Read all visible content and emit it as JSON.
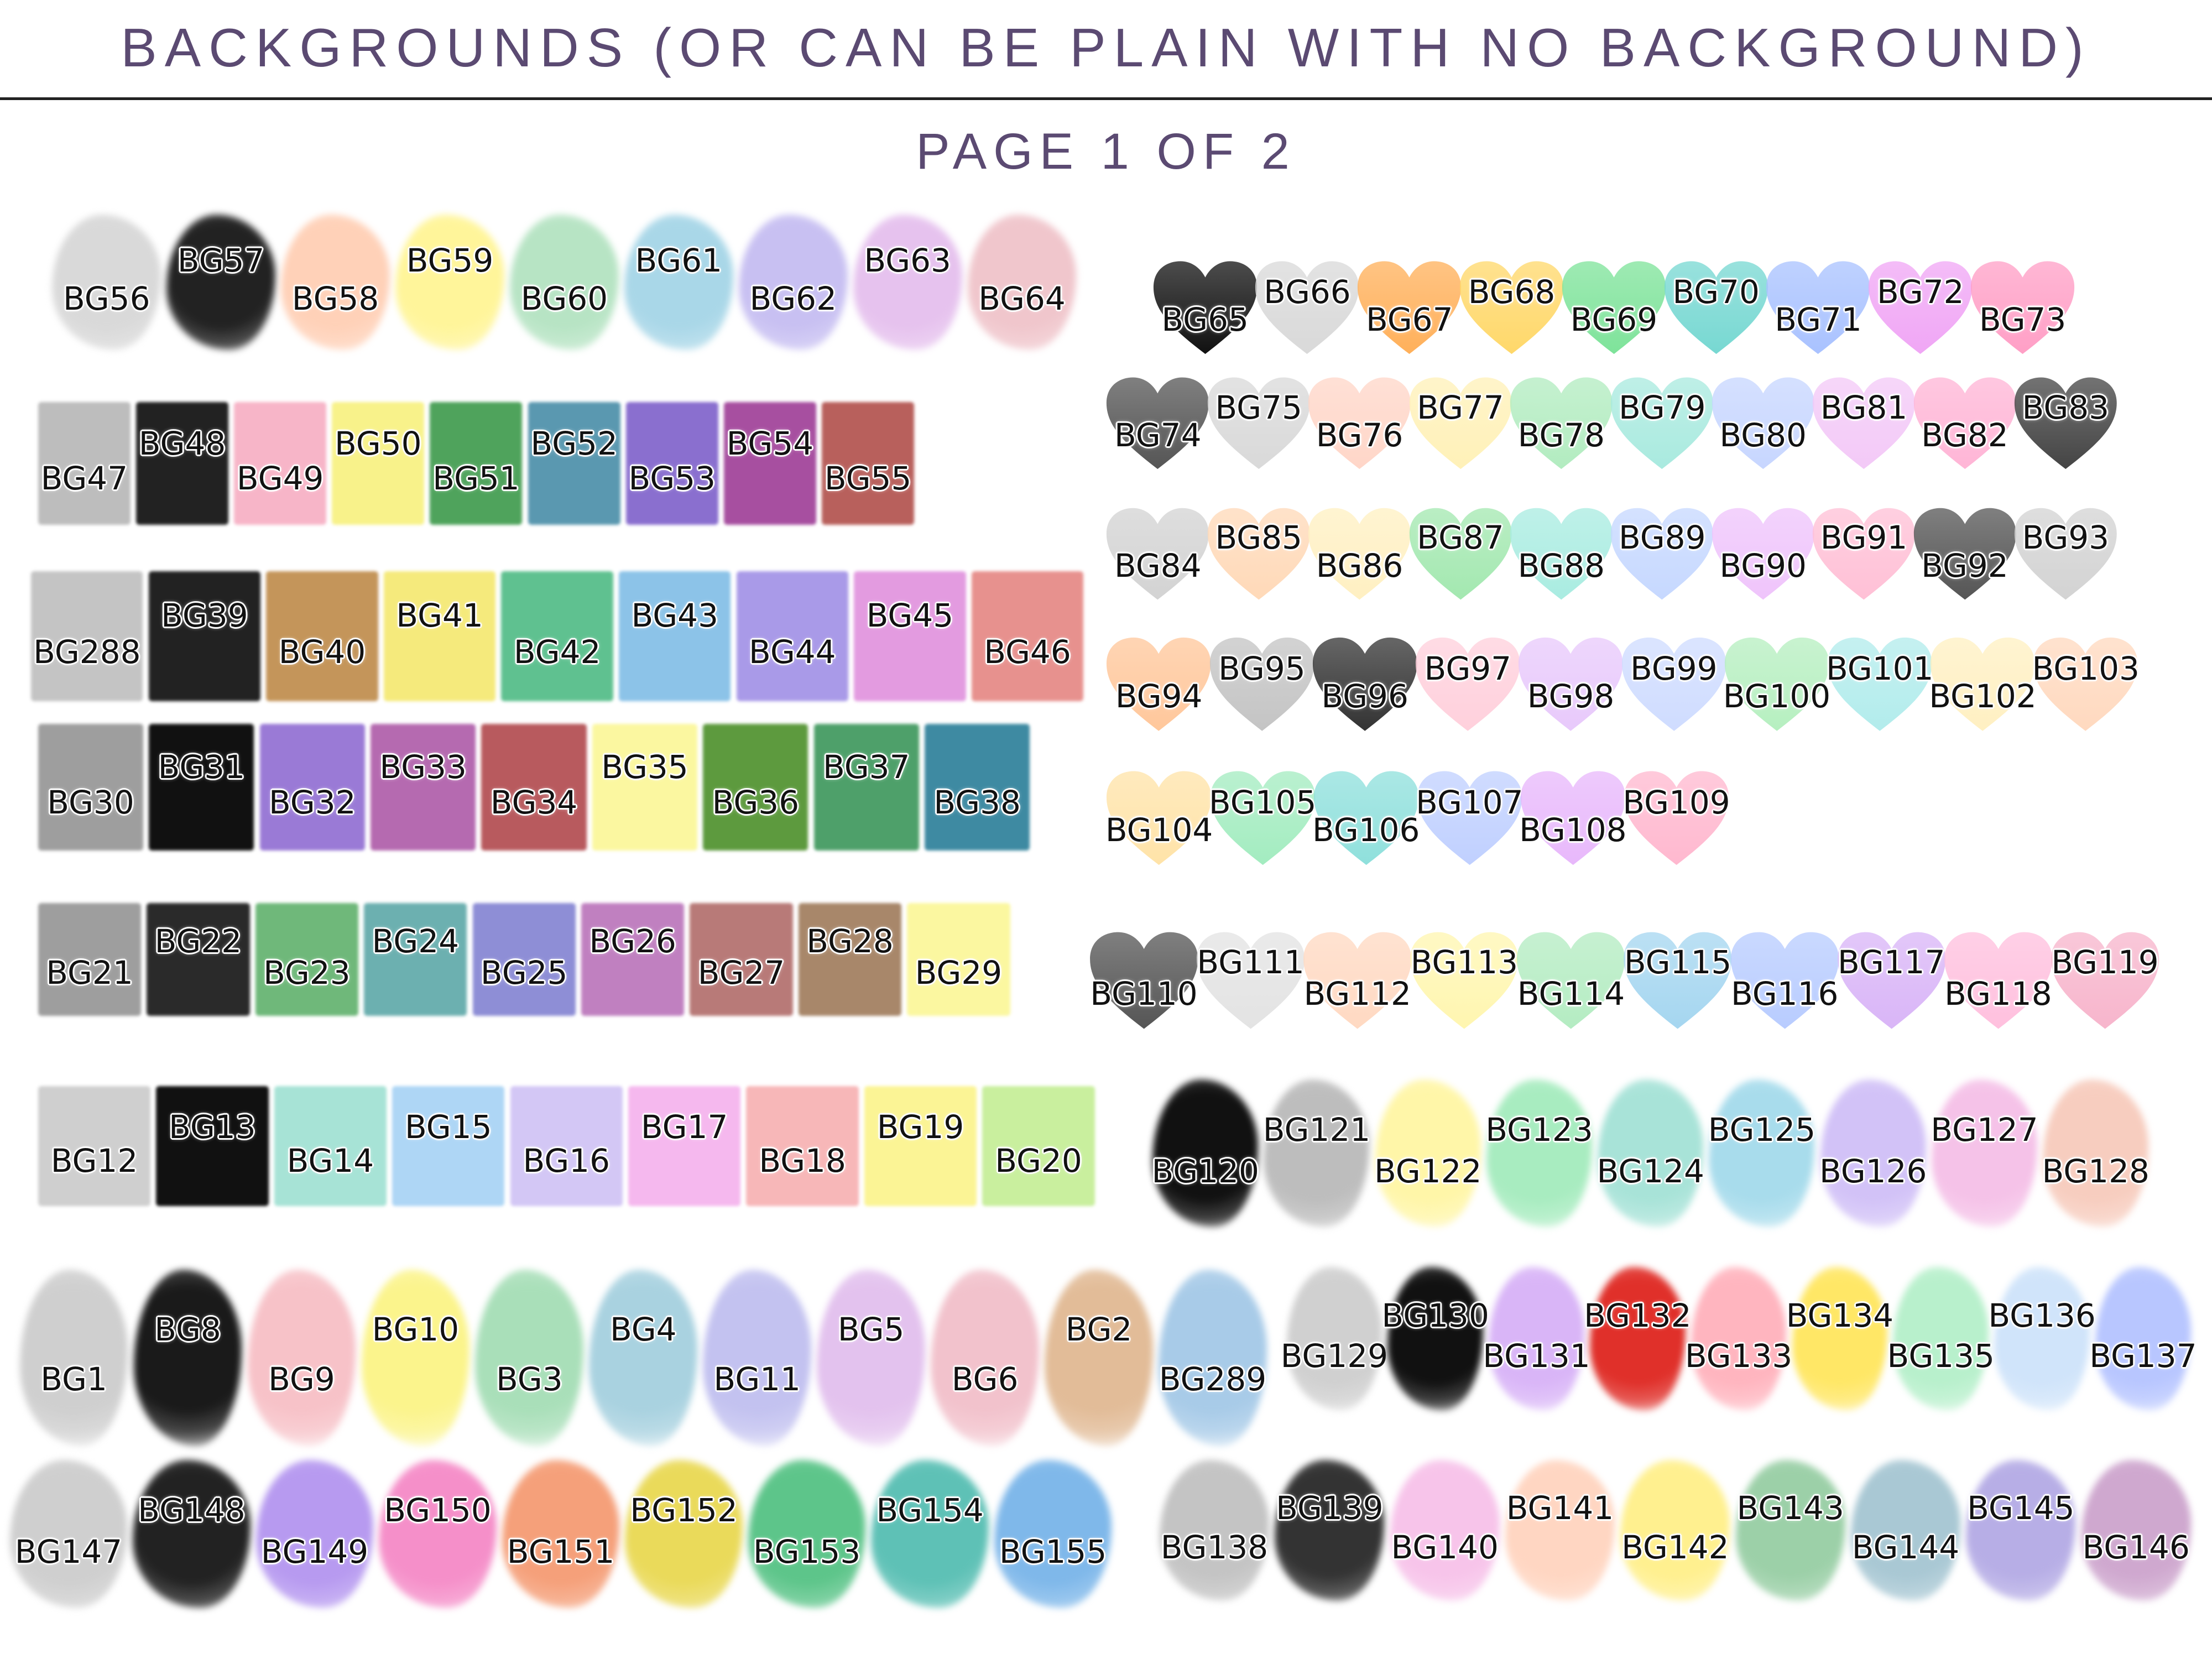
{
  "header": {
    "title": "BACKGROUNDS (OR CAN BE PLAIN WITH NO BACKGROUND)",
    "page": "PAGE 1 OF 2"
  },
  "rows": [
    {
      "shape": "splash",
      "items": [
        {
          "label": "BG56",
          "color": "#d9d9d9"
        },
        {
          "label": "BG57",
          "color": "#222222"
        },
        {
          "label": "BG58",
          "color": "#ffd1b8"
        },
        {
          "label": "BG59",
          "color": "#fff59a"
        },
        {
          "label": "BG60",
          "color": "#b7e4c4"
        },
        {
          "label": "BG61",
          "color": "#a9d7e8"
        },
        {
          "label": "BG62",
          "color": "#c8c0f2"
        },
        {
          "label": "BG63",
          "color": "#e6c2ee"
        },
        {
          "label": "BG64",
          "color": "#f0c6cc"
        }
      ]
    },
    {
      "shape": "square",
      "items": [
        {
          "label": "BG47",
          "color": "#bdbdbd"
        },
        {
          "label": "BG48",
          "color": "#222222"
        },
        {
          "label": "BG49",
          "color": "#f7b5c8"
        },
        {
          "label": "BG50",
          "color": "#f8f28a"
        },
        {
          "label": "BG51",
          "color": "#4fa35c"
        },
        {
          "label": "BG52",
          "color": "#5a98b0"
        },
        {
          "label": "BG53",
          "color": "#8a6fcf"
        },
        {
          "label": "BG54",
          "color": "#a74fa0"
        },
        {
          "label": "BG55",
          "color": "#b8605c"
        }
      ]
    },
    {
      "shape": "square",
      "items": [
        {
          "label": "BG288",
          "color": "#c4c4c4"
        },
        {
          "label": "BG39",
          "color": "#222222"
        },
        {
          "label": "BG40",
          "color": "#c4955a"
        },
        {
          "label": "BG41",
          "color": "#f5ea7c"
        },
        {
          "label": "BG42",
          "color": "#5fc190"
        },
        {
          "label": "BG43",
          "color": "#8cc3e8"
        },
        {
          "label": "BG44",
          "color": "#a99ae8"
        },
        {
          "label": "BG45",
          "color": "#e39be0"
        },
        {
          "label": "BG46",
          "color": "#e7918e"
        }
      ]
    },
    {
      "shape": "square",
      "items": [
        {
          "label": "BG30",
          "color": "#9e9e9e"
        },
        {
          "label": "BG31",
          "color": "#111111"
        },
        {
          "label": "BG32",
          "color": "#9a7ad6"
        },
        {
          "label": "BG33",
          "color": "#b56ab0"
        },
        {
          "label": "BG34",
          "color": "#b85a5e"
        },
        {
          "label": "BG35",
          "color": "#fbf7a0"
        },
        {
          "label": "BG36",
          "color": "#5d9a3e"
        },
        {
          "label": "BG37",
          "color": "#4ea06a"
        },
        {
          "label": "BG38",
          "color": "#3e8aa2"
        }
      ]
    },
    {
      "shape": "square",
      "items": [
        {
          "label": "BG21",
          "color": "#9e9e9e"
        },
        {
          "label": "BG22",
          "color": "#2a2a2a"
        },
        {
          "label": "BG23",
          "color": "#6fb87a"
        },
        {
          "label": "BG24",
          "color": "#6cb0b0"
        },
        {
          "label": "BG25",
          "color": "#8e8ed6"
        },
        {
          "label": "BG26",
          "color": "#c080c0"
        },
        {
          "label": "BG27",
          "color": "#b87a78"
        },
        {
          "label": "BG28",
          "color": "#a8876a"
        },
        {
          "label": "BG29",
          "color": "#fbf7a0"
        }
      ]
    },
    {
      "shape": "square",
      "items": [
        {
          "label": "BG12",
          "color": "#cfcfcf"
        },
        {
          "label": "BG13",
          "color": "#111111"
        },
        {
          "label": "BG14",
          "color": "#a7e3d6"
        },
        {
          "label": "BG15",
          "color": "#aed6f5"
        },
        {
          "label": "BG16",
          "color": "#d3c7f5"
        },
        {
          "label": "BG17",
          "color": "#f5b8ee"
        },
        {
          "label": "BG18",
          "color": "#f7b7b8"
        },
        {
          "label": "BG19",
          "color": "#fbf495"
        },
        {
          "label": "BG20",
          "color": "#c9ef9e"
        }
      ]
    },
    {
      "shape": "splash",
      "items": [
        {
          "label": "BG1",
          "color": "#cfcfcf"
        },
        {
          "label": "BG8",
          "color": "#1a1a1a"
        },
        {
          "label": "BG9",
          "color": "#f7c2c8"
        },
        {
          "label": "BG10",
          "color": "#fbf48c"
        },
        {
          "label": "BG3",
          "color": "#a9dfb9"
        },
        {
          "label": "BG4",
          "color": "#a9d2e0"
        },
        {
          "label": "BG11",
          "color": "#c3c2f0"
        },
        {
          "label": "BG5",
          "color": "#e3c2ee"
        },
        {
          "label": "BG6",
          "color": "#f2c2cc"
        },
        {
          "label": "BG2",
          "color": "#e2bc98"
        },
        {
          "label": "BG289",
          "color": "#a8cbe8"
        }
      ]
    },
    {
      "shape": "splash",
      "items": [
        {
          "label": "BG147",
          "color": "#cfcfcf"
        },
        {
          "label": "BG148",
          "color": "#222222"
        },
        {
          "label": "BG149",
          "color": "#b79af0"
        },
        {
          "label": "BG150",
          "color": "#f58fc9"
        },
        {
          "label": "BG151",
          "color": "#f5a07a"
        },
        {
          "label": "BG152",
          "color": "#eada5a"
        },
        {
          "label": "BG153",
          "color": "#5dc58a"
        },
        {
          "label": "BG154",
          "color": "#5ec1b6"
        },
        {
          "label": "BG155",
          "color": "#7fb8ea"
        }
      ]
    },
    {
      "shape": "heart",
      "items": [
        {
          "label": "BG65",
          "color": "#111111"
        },
        {
          "label": "BG66",
          "color": "#d9d9d9"
        },
        {
          "label": "BG67",
          "color": "#ffb05a"
        },
        {
          "label": "BG68",
          "color": "#ffd86a"
        },
        {
          "label": "BG69",
          "color": "#7ee39a"
        },
        {
          "label": "BG70",
          "color": "#77d8d2"
        },
        {
          "label": "BG71",
          "color": "#a9c2ff"
        },
        {
          "label": "BG72",
          "color": "#f0a6f5"
        },
        {
          "label": "BG73",
          "color": "#ff9fc6"
        }
      ]
    },
    {
      "shape": "heart",
      "items": [
        {
          "label": "BG74",
          "color": "#555555"
        },
        {
          "label": "BG75",
          "color": "#d9d9d9"
        },
        {
          "label": "BG76",
          "color": "#ffd6c8"
        },
        {
          "label": "BG77",
          "color": "#fff1b8"
        },
        {
          "label": "BG78",
          "color": "#b2ecc0"
        },
        {
          "label": "BG79",
          "color": "#a9eadf"
        },
        {
          "label": "BG80",
          "color": "#c7d6ff"
        },
        {
          "label": "BG81",
          "color": "#f3c9f7"
        },
        {
          "label": "BG82",
          "color": "#ffb5d6"
        },
        {
          "label": "BG83",
          "color": "#444444"
        }
      ]
    },
    {
      "shape": "heart",
      "items": [
        {
          "label": "BG84",
          "color": "#d3d3d3"
        },
        {
          "label": "BG85",
          "color": "#ffd9b8"
        },
        {
          "label": "BG86",
          "color": "#fff0c2"
        },
        {
          "label": "BG87",
          "color": "#a3e8b0"
        },
        {
          "label": "BG88",
          "color": "#a9ece1"
        },
        {
          "label": "BG89",
          "color": "#c6d8ff"
        },
        {
          "label": "BG90",
          "color": "#efc4fb"
        },
        {
          "label": "BG91",
          "color": "#ffc0d6"
        },
        {
          "label": "BG92",
          "color": "#555555"
        },
        {
          "label": "BG93",
          "color": "#d3d3d3"
        }
      ]
    },
    {
      "shape": "heart",
      "items": [
        {
          "label": "BG94",
          "color": "#ffc79b"
        },
        {
          "label": "BG95",
          "color": "#c4c4c4"
        },
        {
          "label": "BG96",
          "color": "#333333"
        },
        {
          "label": "BG97",
          "color": "#ffd0dc"
        },
        {
          "label": "BG98",
          "color": "#e8c9fb"
        },
        {
          "label": "BG99",
          "color": "#cfdcff"
        },
        {
          "label": "BG100",
          "color": "#b6efc0"
        },
        {
          "label": "BG101",
          "color": "#b2ecec"
        },
        {
          "label": "BG102",
          "color": "#fff0c2"
        },
        {
          "label": "BG103",
          "color": "#ffd9bf"
        }
      ]
    },
    {
      "shape": "heart",
      "items": [
        {
          "label": "BG104",
          "color": "#ffe3a8"
        },
        {
          "label": "BG105",
          "color": "#a3ecc0"
        },
        {
          "label": "BG106",
          "color": "#8fe0dc"
        },
        {
          "label": "BG107",
          "color": "#c0d0ff"
        },
        {
          "label": "BG108",
          "color": "#e8b8fb"
        },
        {
          "label": "BG109",
          "color": "#ffb8cf"
        }
      ]
    },
    {
      "shape": "heart",
      "items": [
        {
          "label": "BG110",
          "color": "#555555"
        },
        {
          "label": "BG111",
          "color": "#e3e3e3"
        },
        {
          "label": "BG112",
          "color": "#ffd9c2"
        },
        {
          "label": "BG113",
          "color": "#fff6b0"
        },
        {
          "label": "BG114",
          "color": "#b4ecc2"
        },
        {
          "label": "BG115",
          "color": "#a5d6f0"
        },
        {
          "label": "BG116",
          "color": "#b8ccff"
        },
        {
          "label": "BG117",
          "color": "#d9b5f7"
        },
        {
          "label": "BG118",
          "color": "#ffc0de"
        },
        {
          "label": "BG119",
          "color": "#f7b5cc"
        }
      ]
    },
    {
      "shape": "splash",
      "items": [
        {
          "label": "BG120",
          "color": "#111111"
        },
        {
          "label": "BG121",
          "color": "#bdbdbd"
        },
        {
          "label": "BG122",
          "color": "#fff6a8"
        },
        {
          "label": "BG123",
          "color": "#a8ecc0"
        },
        {
          "label": "BG124",
          "color": "#a8e3d8"
        },
        {
          "label": "BG125",
          "color": "#a8dcec"
        },
        {
          "label": "BG126",
          "color": "#d2c2f7"
        },
        {
          "label": "BG127",
          "color": "#f5c2e8"
        },
        {
          "label": "BG128",
          "color": "#f7cdbf"
        }
      ]
    },
    {
      "shape": "splash",
      "items": [
        {
          "label": "BG129",
          "color": "#d0d0d0"
        },
        {
          "label": "BG130",
          "color": "#111111"
        },
        {
          "label": "BG131",
          "color": "#d9b5f7"
        },
        {
          "label": "BG132",
          "color": "#e0302a"
        },
        {
          "label": "BG133",
          "color": "#ffb5bf"
        },
        {
          "label": "BG134",
          "color": "#ffe766"
        },
        {
          "label": "BG135",
          "color": "#b8f0cc"
        },
        {
          "label": "BG136",
          "color": "#d0e4fa"
        },
        {
          "label": "BG137",
          "color": "#b8c6ff"
        }
      ]
    },
    {
      "shape": "splash",
      "items": [
        {
          "label": "BG138",
          "color": "#c4c4c4"
        },
        {
          "label": "BG139",
          "color": "#333333"
        },
        {
          "label": "BG140",
          "color": "#f7c4ea"
        },
        {
          "label": "BG141",
          "color": "#ffd6c2"
        },
        {
          "label": "BG142",
          "color": "#fff08f"
        },
        {
          "label": "BG143",
          "color": "#9cd0a8"
        },
        {
          "label": "BG144",
          "color": "#a9c8d4"
        },
        {
          "label": "BG145",
          "color": "#b7aee6"
        },
        {
          "label": "BG146",
          "color": "#cfa8cf"
        }
      ]
    }
  ]
}
